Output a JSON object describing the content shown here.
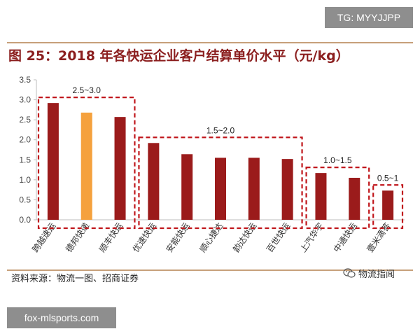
{
  "watermark_top": "TG: MYYJJPP",
  "watermark_bottom": "fox-mlsports.com",
  "figure_title": "图 25：2018 年各快运企业客户结算单价水平（元/kg）",
  "source": "资料来源：物流一图、招商证券",
  "brand": "物流指闻",
  "colors": {
    "bar": "#9b1b1b",
    "highlight": "#f5a13d",
    "box": "#c0161b",
    "title": "#8b1e1e"
  },
  "chart_data": {
    "type": "bar",
    "categories": [
      "跨越速运",
      "德邦快递",
      "顺丰快运",
      "优速快运",
      "安能快运",
      "顺心捷达",
      "韵达快运",
      "百世快运",
      "上汽华宇",
      "中通快运",
      "壹米滴答"
    ],
    "values": [
      2.92,
      2.68,
      2.57,
      1.92,
      1.64,
      1.55,
      1.55,
      1.52,
      1.17,
      1.05,
      0.73
    ],
    "highlight_index": 1,
    "ylim": [
      0,
      3.5
    ],
    "yticks": [
      "0.0",
      "0.5",
      "1.0",
      "1.5",
      "2.0",
      "2.5",
      "3.0",
      "3.5"
    ],
    "grid": false,
    "groups": [
      {
        "label": "2.5~3.0",
        "start": 0,
        "end": 2
      },
      {
        "label": "1.5~2.0",
        "start": 3,
        "end": 7
      },
      {
        "label": "1.0~1.5",
        "start": 8,
        "end": 9
      },
      {
        "label": "0.5~1",
        "start": 10,
        "end": 10
      }
    ]
  }
}
